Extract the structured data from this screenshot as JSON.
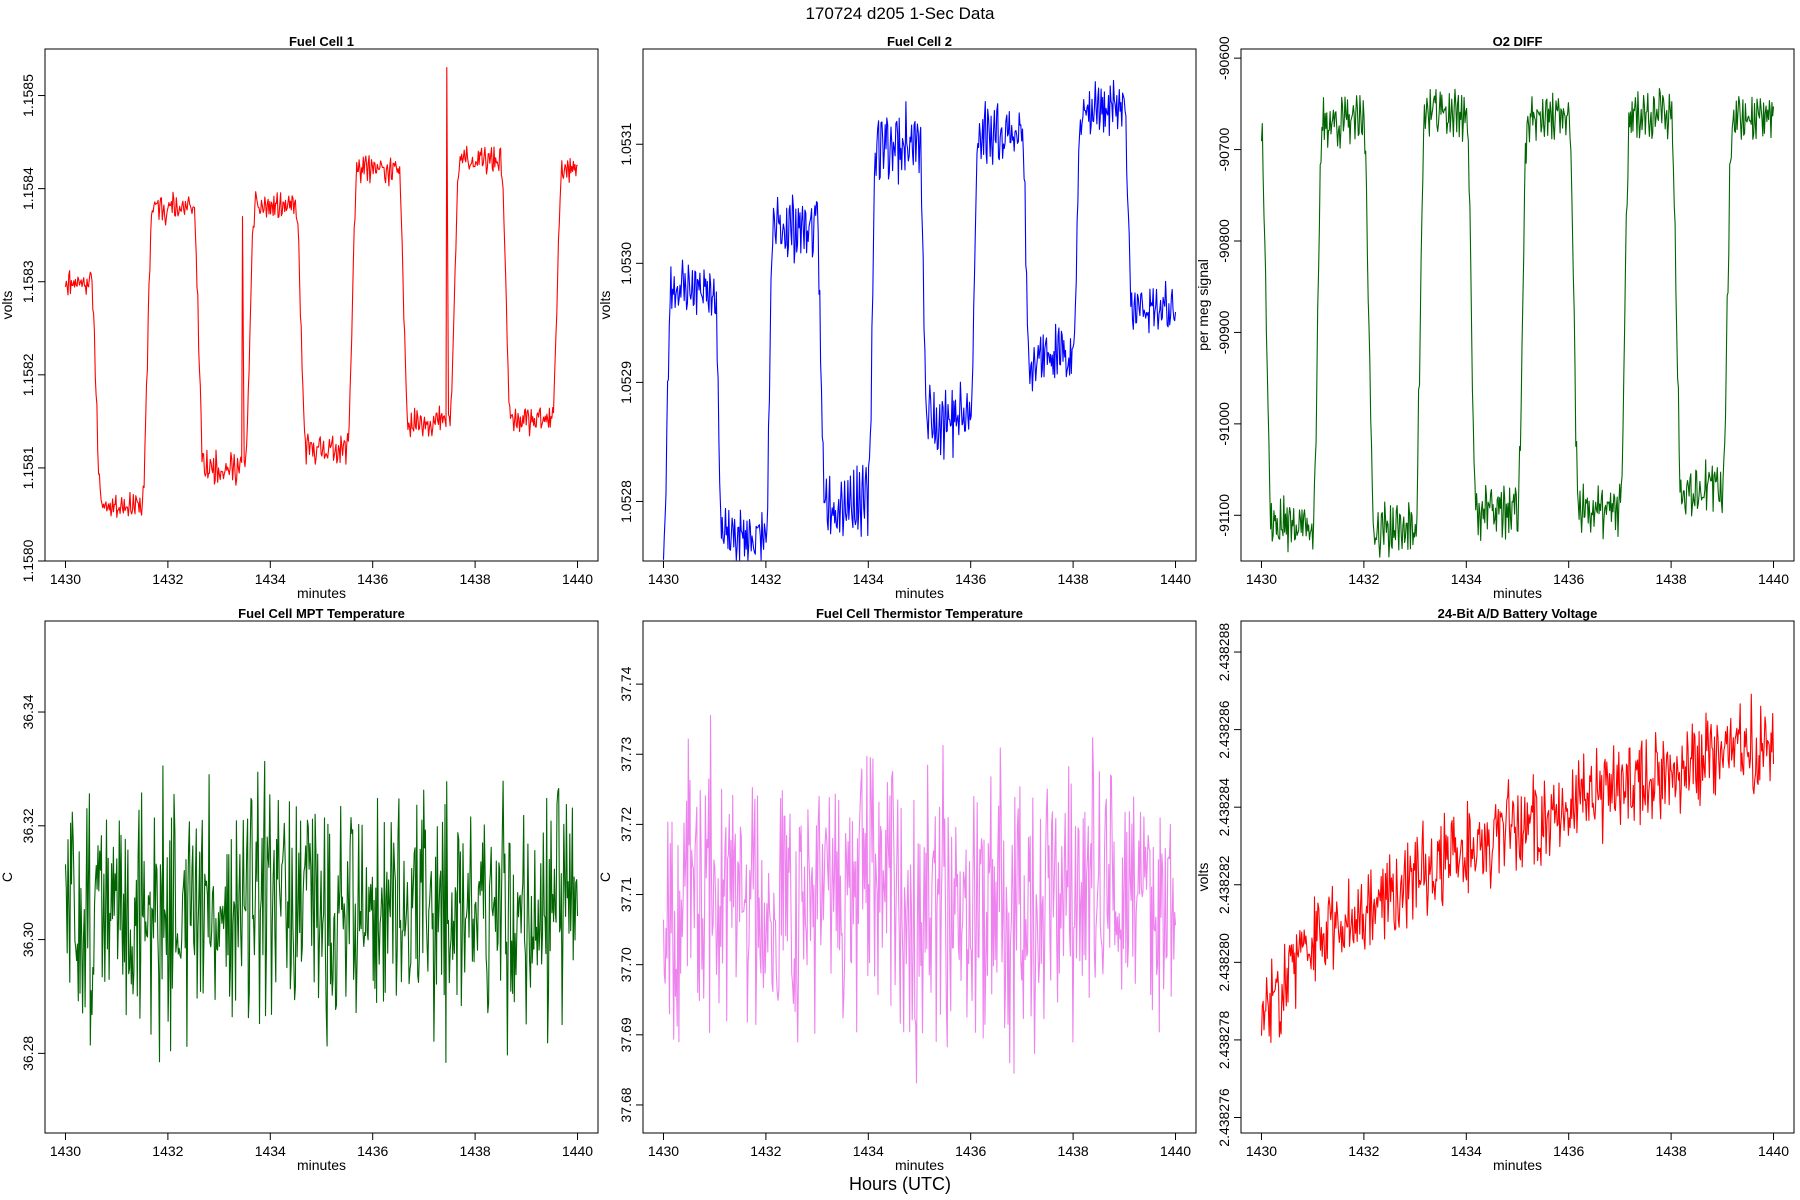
{
  "figure": {
    "title": "170724   d205   1-Sec Data",
    "bottom_label": "Hours (UTC)"
  },
  "chart_data": [
    {
      "type": "line",
      "title": "Fuel Cell 1",
      "xlabel": "minutes",
      "ylabel": "volts",
      "color": "#ff0000",
      "xlim": [
        1429.6,
        1440.4
      ],
      "ylim": [
        1.158,
        1.15855
      ],
      "xticks": [
        1430,
        1432,
        1434,
        1436,
        1438,
        1440
      ],
      "xtick_labels": [
        "1430",
        "1432",
        "1434",
        "1436",
        "1438",
        "1440"
      ],
      "yticks": [
        1.158,
        1.1581,
        1.1582,
        1.1583,
        1.1584,
        1.1585
      ],
      "ytick_labels": [
        "1.1580",
        "1.1581",
        "1.1582",
        "1.1583",
        "1.1584",
        "1.1585"
      ],
      "signal": {
        "kind": "square",
        "x0": 1430.0,
        "x1": 1440.0,
        "period": 2.0,
        "start_phase": 0.5,
        "duty": 0.5,
        "rise": 0.2,
        "noise": 0.08,
        "seed": 11
      },
      "levels": [
        {
          "low": 1.15803,
          "high": 1.1583
        },
        {
          "low": 1.15806,
          "high": 1.15838
        },
        {
          "low": 1.1581,
          "high": 1.15838
        },
        {
          "low": 1.15812,
          "high": 1.15842
        },
        {
          "low": 1.15815,
          "high": 1.15843
        },
        {
          "low": 1.15815,
          "high": 1.15842
        }
      ],
      "annotation_peaks": [
        [
          1433.45,
          1.15837
        ],
        [
          1437.45,
          1.15853
        ]
      ]
    },
    {
      "type": "line",
      "title": "Fuel Cell 2",
      "xlabel": "minutes",
      "ylabel": "volts",
      "color": "#0000ff",
      "xlim": [
        1429.6,
        1440.4
      ],
      "ylim": [
        1.05275,
        1.05318
      ],
      "xticks": [
        1430,
        1432,
        1434,
        1436,
        1438,
        1440
      ],
      "xtick_labels": [
        "1430",
        "1432",
        "1434",
        "1436",
        "1438",
        "1440"
      ],
      "yticks": [
        1.0528,
        1.0529,
        1.053,
        1.0531
      ],
      "ytick_labels": [
        "1.0528",
        "1.0529",
        "1.0530",
        "1.0531"
      ],
      "signal": {
        "kind": "square",
        "x0": 1430.0,
        "x1": 1440.0,
        "period": 2.0,
        "start_phase": 0.0,
        "duty": 0.5,
        "rise": 0.15,
        "noise": 0.16,
        "seed": 23
      },
      "levels": [
        {
          "low": 1.05276,
          "high": 1.05298
        },
        {
          "low": 1.05277,
          "high": 1.05303
        },
        {
          "low": 1.0528,
          "high": 1.0531
        },
        {
          "low": 1.05287,
          "high": 1.05311
        },
        {
          "low": 1.05292,
          "high": 1.05313
        },
        {
          "low": 1.05296,
          "high": 1.05314
        }
      ]
    },
    {
      "type": "line",
      "title": "O2 DIFF",
      "xlabel": "minutes",
      "ylabel": "per meg signal",
      "color": "#006400",
      "xlim": [
        1429.6,
        1440.4
      ],
      "ylim": [
        -91150,
        -90590
      ],
      "xticks": [
        1430,
        1432,
        1434,
        1436,
        1438,
        1440
      ],
      "xtick_labels": [
        "1430",
        "1432",
        "1434",
        "1436",
        "1438",
        "1440"
      ],
      "yticks": [
        -91100,
        -91000,
        -90900,
        -90800,
        -90700,
        -90600
      ],
      "ytick_labels": [
        "-91100",
        "-91000",
        "-90900",
        "-90800",
        "-90700",
        "-90600"
      ],
      "signal": {
        "kind": "square",
        "x0": 1430.0,
        "x1": 1440.0,
        "period": 2.0,
        "start_phase": 1.0,
        "duty": 0.5,
        "rise": 0.2,
        "noise": 0.1,
        "seed": 37
      },
      "levels": [
        {
          "low": -91110,
          "high": -90680
        },
        {
          "low": -91110,
          "high": -90670
        },
        {
          "low": -91115,
          "high": -90660
        },
        {
          "low": -91095,
          "high": -90665
        },
        {
          "low": -91095,
          "high": -90660
        },
        {
          "low": -91070,
          "high": -90665
        }
      ]
    },
    {
      "type": "line",
      "title": "Fuel Cell MPT Temperature",
      "xlabel": "minutes",
      "ylabel": "C",
      "color": "#006400",
      "xlim": [
        1429.6,
        1440.4
      ],
      "ylim": [
        36.266,
        36.356
      ],
      "xticks": [
        1430,
        1432,
        1434,
        1436,
        1438,
        1440
      ],
      "xtick_labels": [
        "1430",
        "1432",
        "1434",
        "1436",
        "1438",
        "1440"
      ],
      "yticks": [
        36.28,
        36.3,
        36.32,
        36.34
      ],
      "ytick_labels": [
        "36.28",
        "36.30",
        "36.32",
        "36.34"
      ],
      "signal": {
        "kind": "noise",
        "x0": 1430.0,
        "x1": 1440.0,
        "n": 600,
        "mean": 36.305,
        "amp": 0.014,
        "trend": 0.0,
        "seed": 51
      }
    },
    {
      "type": "line",
      "title": "Fuel Cell Thermistor Temperature",
      "xlabel": "minutes",
      "ylabel": "C",
      "color": "#ee82ee",
      "xlim": [
        1429.6,
        1440.4
      ],
      "ylim": [
        37.676,
        37.749
      ],
      "xticks": [
        1430,
        1432,
        1434,
        1436,
        1438,
        1440
      ],
      "xtick_labels": [
        "1430",
        "1432",
        "1434",
        "1436",
        "1438",
        "1440"
      ],
      "yticks": [
        37.68,
        37.69,
        37.7,
        37.71,
        37.72,
        37.73,
        37.74
      ],
      "ytick_labels": [
        "37.68",
        "37.69",
        "37.70",
        "37.71",
        "37.72",
        "37.73",
        "37.74"
      ],
      "signal": {
        "kind": "noise",
        "x0": 1430.0,
        "x1": 1440.0,
        "n": 600,
        "mean": 37.71,
        "amp": 0.013,
        "trend": 0.0,
        "seed": 67
      }
    },
    {
      "type": "line",
      "title": "24-Bit A/D Battery Voltage",
      "xlabel": "minutes",
      "ylabel": "volts",
      "color": "#ff0000",
      "xlim": [
        1429.6,
        1440.4
      ],
      "ylim": [
        2.4382756,
        2.4382888
      ],
      "xticks": [
        1430,
        1432,
        1434,
        1436,
        1438,
        1440
      ],
      "xtick_labels": [
        "1430",
        "1432",
        "1434",
        "1436",
        "1438",
        "1440"
      ],
      "yticks": [
        2.438276,
        2.438278,
        2.43828,
        2.438282,
        2.438284,
        2.438286,
        2.438288
      ],
      "ytick_labels": [
        "2.438276",
        "2.438278",
        "2.438280",
        "2.438282",
        "2.438284",
        "2.438286",
        "2.438288"
      ],
      "signal": {
        "kind": "trend",
        "x0": 1430.0,
        "x1": 1440.0,
        "n": 600,
        "start": 2.438278,
        "end": 2.4382857,
        "amp": 9e-07,
        "seed": 83
      }
    }
  ]
}
